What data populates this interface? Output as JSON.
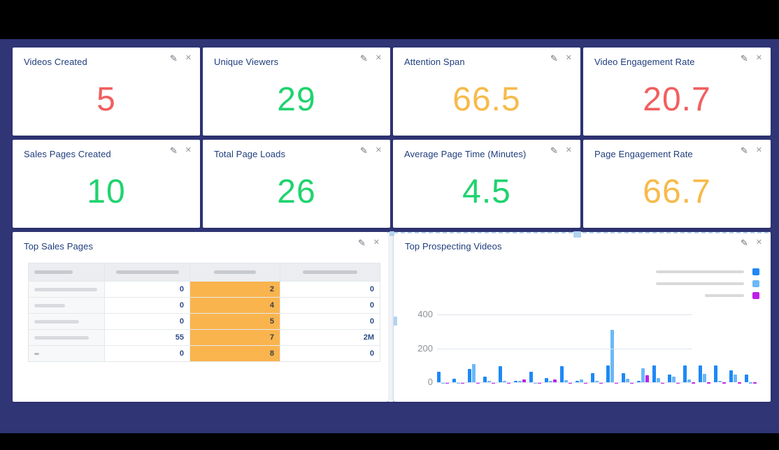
{
  "metrics": [
    {
      "title": "Videos Created",
      "value": "5",
      "color": "#f15f5f"
    },
    {
      "title": "Unique Viewers",
      "value": "29",
      "color": "#1fd36f"
    },
    {
      "title": "Attention Span",
      "value": "66.5",
      "color": "#f7ba4a"
    },
    {
      "title": "Video Engagement Rate",
      "value": "20.7",
      "color": "#f15f5f"
    },
    {
      "title": "Sales Pages Created",
      "value": "10",
      "color": "#1fd36f"
    },
    {
      "title": "Total Page Loads",
      "value": "26",
      "color": "#1fd36f"
    },
    {
      "title": "Average Page Time (Minutes)",
      "value": "4.5",
      "color": "#1fd36f"
    },
    {
      "title": "Page Engagement Rate",
      "value": "66.7",
      "color": "#f7ba4a"
    }
  ],
  "icons": {
    "edit": "✎",
    "close": "✕"
  },
  "panels": {
    "sales_table": {
      "title": "Top Sales Pages",
      "header_labels_redacted": true,
      "header_pill_widths": [
        55,
        90,
        60,
        78
      ],
      "highlight_color": "#f9b44e",
      "rows": [
        {
          "label_redacted": true,
          "label_pill_width": 90,
          "values": [
            "0",
            "2",
            "0"
          ]
        },
        {
          "label_redacted": true,
          "label_pill_width": 44,
          "values": [
            "0",
            "4",
            "0"
          ]
        },
        {
          "label_redacted": true,
          "label_pill_width": 64,
          "values": [
            "0",
            "5",
            "0"
          ]
        },
        {
          "label_redacted": true,
          "label_pill_width": 78,
          "values": [
            "55",
            "7",
            "2M"
          ]
        },
        {
          "label_redacted": true,
          "label_pill_width": 7,
          "values": [
            "0",
            "8",
            "0"
          ]
        }
      ]
    },
    "video_chart": {
      "title": "Top Prospecting Videos",
      "selected": true,
      "legend_pill_widths": [
        126,
        126,
        56
      ]
    }
  },
  "chart_data": {
    "type": "bar",
    "title": "Top Prospecting Videos",
    "xlabel": "",
    "ylabel": "",
    "ylim": [
      0,
      400
    ],
    "yticks": [
      "0",
      "200",
      "400"
    ],
    "grid": true,
    "x_labels_redacted": true,
    "legend_position": "top-right",
    "legend_labels_redacted": true,
    "series": [
      {
        "name": "series-1",
        "color": "#1e88f7",
        "values": [
          62,
          22,
          77,
          35,
          93,
          6,
          62,
          25,
          96,
          8,
          52,
          100,
          52,
          10,
          100,
          45,
          100,
          100,
          100,
          70,
          45
        ]
      },
      {
        "name": "series-2",
        "color": "#6cb8f7",
        "values": [
          4,
          5,
          109,
          6,
          8,
          9,
          5,
          6,
          12,
          18,
          6,
          310,
          22,
          83,
          25,
          33,
          15,
          50,
          8,
          45,
          5
        ]
      },
      {
        "name": "series-3",
        "color": "#bf1fe8",
        "values": [
          3,
          3,
          2,
          2,
          4,
          18,
          2,
          18,
          2,
          3,
          2,
          3,
          2,
          43,
          2,
          3,
          2,
          2,
          2,
          3,
          2
        ]
      }
    ]
  },
  "colors": {
    "background": "#2f3575",
    "card": "#ffffff",
    "panel_title": "#1f3d7d",
    "table_number": "#2a4a8a",
    "selection": "#b5d4f0",
    "gridline": "#dde4ee"
  }
}
